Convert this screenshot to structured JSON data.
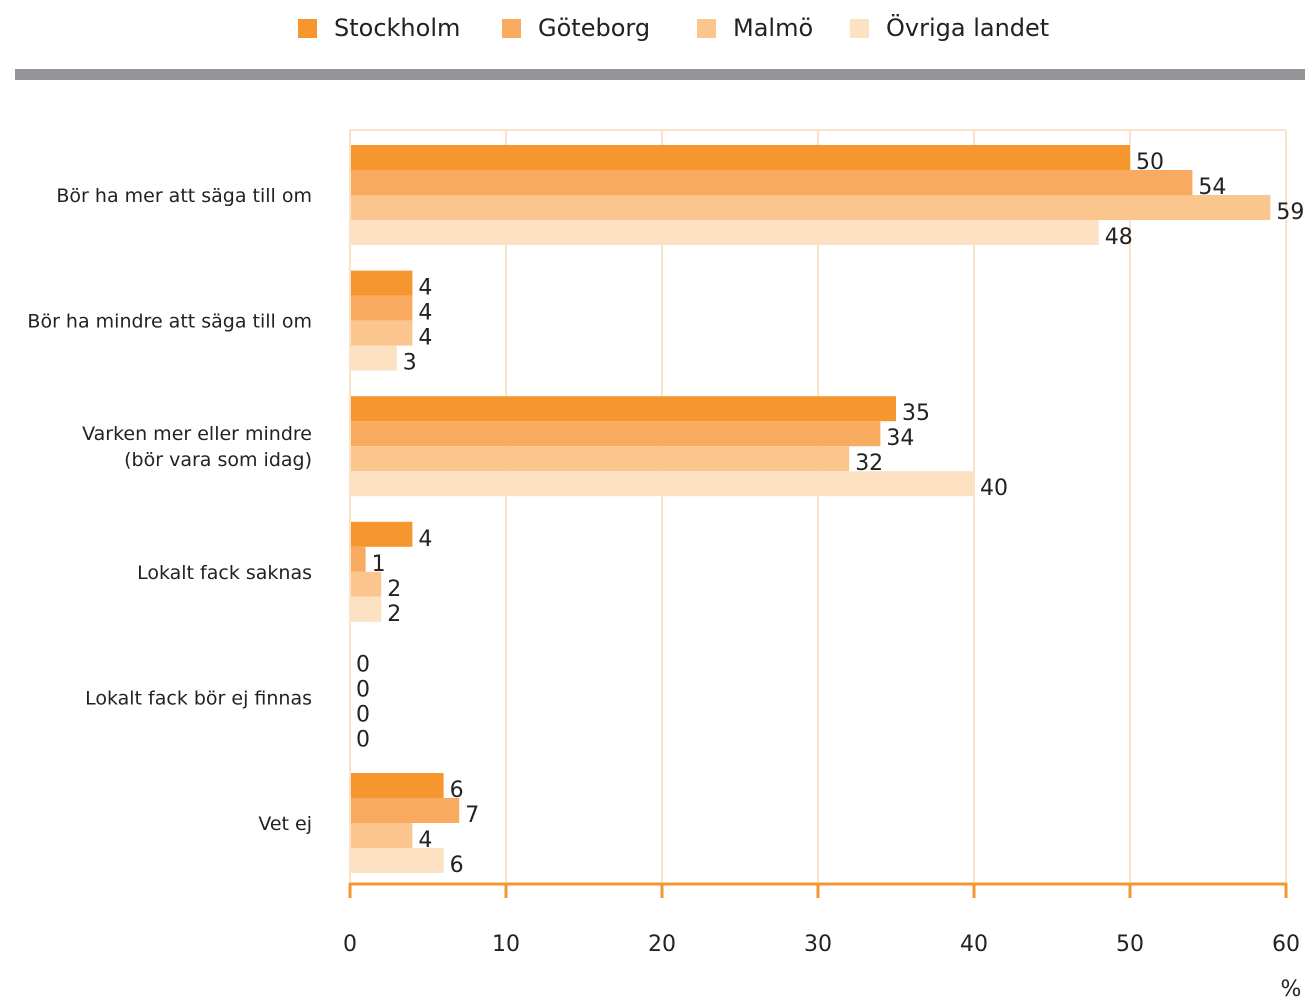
{
  "chart_data": {
    "type": "bar",
    "orientation": "horizontal",
    "categories": [
      "Bör ha mer att säga till om",
      "Bör ha mindre att säga till om",
      "Varken mer eller mindre\n(bör vara som idag)",
      "Lokalt fack saknas",
      "Lokalt fack bör ej finnas",
      "Vet ej"
    ],
    "series": [
      {
        "name": "Stockholm",
        "color": "#F5962F",
        "values": [
          50,
          4,
          35,
          4,
          0,
          6
        ]
      },
      {
        "name": "Göteborg",
        "color": "#F8AA61",
        "values": [
          54,
          4,
          34,
          1,
          0,
          7
        ]
      },
      {
        "name": "Malmö",
        "color": "#FBC58E",
        "values": [
          59,
          4,
          32,
          2,
          0,
          4
        ]
      },
      {
        "name": "Övriga landet",
        "color": "#FDE1C3",
        "values": [
          48,
          3,
          40,
          2,
          0,
          6
        ]
      }
    ],
    "xlim": [
      0,
      60
    ],
    "xticks": [
      0,
      10,
      20,
      30,
      40,
      50,
      60
    ],
    "xunit": "%",
    "grid": true,
    "legend_position": "top",
    "axis_color": "#F5962F",
    "grid_color": "#FCE3C8",
    "divider_color": "#939598"
  }
}
